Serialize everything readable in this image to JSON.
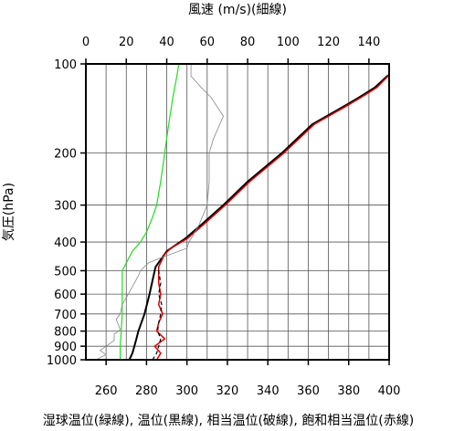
{
  "chart_data": {
    "type": "line",
    "title_top": "風速 (m/s)(細線)",
    "ylabel": "気圧(hPa)",
    "xlabel_bottom": "湿球温位(緑線), 温位(黒線), 相当温位(破線), 飽和相当温位(赤線)",
    "y_scale": "log",
    "ylim": [
      1000,
      100
    ],
    "y_ticks": [
      100,
      200,
      300,
      400,
      500,
      600,
      700,
      800,
      900,
      1000
    ],
    "x_bottom": {
      "range": [
        250,
        400
      ],
      "ticks": [
        260,
        280,
        300,
        320,
        340,
        360,
        380,
        400
      ]
    },
    "x_top": {
      "range": [
        0,
        150
      ],
      "ticks": [
        0,
        20,
        40,
        60,
        80,
        100,
        120,
        140
      ]
    },
    "grid": true,
    "series": [
      {
        "name": "温位",
        "color": "#000000",
        "style": "solid",
        "width": 2,
        "x_axis": "bottom",
        "points": [
          [
            271.5,
            1000
          ],
          [
            273,
            950
          ],
          [
            274,
            900
          ],
          [
            275,
            850
          ],
          [
            276,
            800
          ],
          [
            279,
            700
          ],
          [
            281.5,
            600
          ],
          [
            284,
            500
          ],
          [
            284.5,
            485
          ],
          [
            290,
            430
          ],
          [
            292,
            420
          ],
          [
            299,
            390
          ],
          [
            307,
            350
          ],
          [
            318,
            300
          ],
          [
            330,
            250
          ],
          [
            347,
            200
          ],
          [
            362,
            160
          ],
          [
            377,
            140
          ],
          [
            385,
            130
          ],
          [
            393,
            120
          ],
          [
            399,
            110
          ],
          [
            400,
            109
          ]
        ]
      },
      {
        "name": "飽和相当温位",
        "color": "#e00000",
        "style": "solid",
        "width": 1.5,
        "x_axis": "bottom",
        "points": [
          [
            285,
            1000
          ],
          [
            287,
            950
          ],
          [
            284,
            900
          ],
          [
            289,
            850
          ],
          [
            285,
            800
          ],
          [
            286,
            750
          ],
          [
            288,
            700
          ],
          [
            286,
            650
          ],
          [
            287,
            600
          ],
          [
            286,
            550
          ],
          [
            286,
            500
          ],
          [
            286,
            485
          ],
          [
            289,
            440
          ],
          [
            292,
            420
          ],
          [
            300,
            390
          ],
          [
            308,
            350
          ],
          [
            319,
            300
          ],
          [
            331,
            250
          ],
          [
            348,
            200
          ],
          [
            363,
            160
          ],
          [
            378,
            140
          ],
          [
            386,
            130
          ],
          [
            394,
            120
          ],
          [
            400,
            109
          ]
        ]
      },
      {
        "name": "相当温位",
        "color": "#000000",
        "style": "dashed",
        "width": 1.2,
        "x_axis": "bottom",
        "points": [
          [
            283,
            1000
          ],
          [
            285,
            950
          ],
          [
            286,
            900
          ],
          [
            287,
            850
          ],
          [
            285.5,
            800
          ],
          [
            286,
            750
          ],
          [
            287,
            700
          ],
          [
            287.5,
            650
          ],
          [
            286,
            600
          ],
          [
            287,
            550
          ],
          [
            286,
            500
          ],
          [
            286,
            485
          ]
        ]
      },
      {
        "name": "湿球温位",
        "color": "#22dd22",
        "style": "solid",
        "width": 1.2,
        "x_axis": "bottom",
        "points": [
          [
            267,
            1000
          ],
          [
            267,
            900
          ],
          [
            267.5,
            800
          ],
          [
            268,
            700
          ],
          [
            268,
            600
          ],
          [
            268,
            500
          ],
          [
            270,
            470
          ],
          [
            273,
            430
          ],
          [
            277,
            400
          ],
          [
            280,
            370
          ],
          [
            283,
            330
          ],
          [
            285,
            300
          ],
          [
            287,
            250
          ],
          [
            289,
            200
          ],
          [
            291,
            160
          ],
          [
            293,
            130
          ],
          [
            295,
            110
          ],
          [
            296,
            100
          ]
        ]
      },
      {
        "name": "風速",
        "color": "#888888",
        "style": "solid",
        "width": 0.8,
        "x_axis": "top",
        "points": [
          [
            5,
            1000
          ],
          [
            10,
            960
          ],
          [
            7,
            930
          ],
          [
            10,
            900
          ],
          [
            14,
            860
          ],
          [
            14,
            820
          ],
          [
            17,
            790
          ],
          [
            15,
            730
          ],
          [
            17,
            700
          ],
          [
            18,
            650
          ],
          [
            21,
            600
          ],
          [
            24,
            550
          ],
          [
            26,
            520
          ],
          [
            27,
            500
          ],
          [
            31,
            470
          ],
          [
            38,
            450
          ],
          [
            50,
            420
          ],
          [
            51,
            400
          ],
          [
            52,
            390
          ],
          [
            56,
            350
          ],
          [
            60,
            300
          ],
          [
            61,
            250
          ],
          [
            61,
            200
          ],
          [
            63,
            180
          ],
          [
            68,
            150
          ],
          [
            62,
            130
          ],
          [
            57,
            120
          ],
          [
            52,
            110
          ],
          [
            52,
            100
          ]
        ]
      }
    ]
  }
}
